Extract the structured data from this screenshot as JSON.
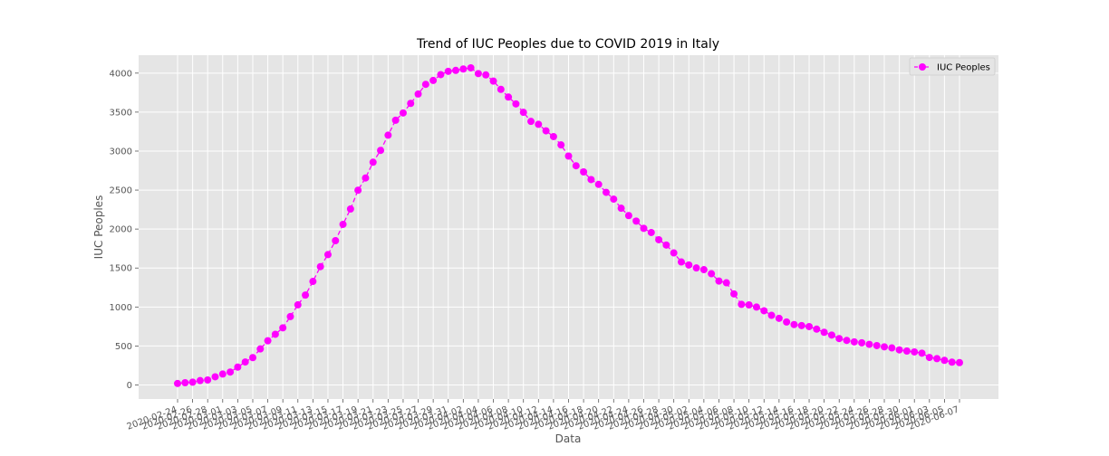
{
  "chart_data": {
    "type": "line",
    "title": "Trend of IUC Peoples due to COVID 2019 in Italy",
    "xlabel": "Data",
    "ylabel": "IUC Peoples",
    "ylim": [
      -180,
      4230
    ],
    "yticks": [
      0,
      500,
      1000,
      1500,
      2000,
      2500,
      3000,
      3500,
      4000
    ],
    "x_start": "2020-02-24",
    "x_end": "2020-06-07",
    "grid": true,
    "legend_position": "top-right",
    "colors": {
      "series": "#ff00ff",
      "plot_bg": "#e5e5e5",
      "grid": "#ffffff"
    },
    "series": [
      {
        "name": "IUC Peoples",
        "values": [
          19,
          29,
          36,
          56,
          64,
          105,
          140,
          166,
          229,
          295,
          351,
          462,
          567,
          650,
          733,
          877,
          1028,
          1153,
          1328,
          1518,
          1672,
          1851,
          2060,
          2257,
          2498,
          2655,
          2857,
          3009,
          3204,
          3396,
          3489,
          3612,
          3732,
          3856,
          3906,
          3981,
          4023,
          4035,
          4053,
          4068,
          3994,
          3977,
          3898,
          3792,
          3693,
          3605,
          3497,
          3381,
          3343,
          3260,
          3186,
          3079,
          2936,
          2812,
          2733,
          2635,
          2573,
          2471,
          2384,
          2267,
          2173,
          2102,
          2009,
          1956,
          1863,
          1795,
          1694,
          1578,
          1539,
          1501,
          1479,
          1427,
          1333,
          1311,
          1168,
          1034,
          1027,
          999,
          952,
          893,
          855,
          808,
          775,
          762,
          749,
          716,
          676,
          640,
          595,
          572,
          553,
          541,
          521,
          505,
          489,
          475,
          450,
          435,
          424,
          408,
          353,
          338,
          316,
          293,
          287
        ]
      }
    ]
  }
}
